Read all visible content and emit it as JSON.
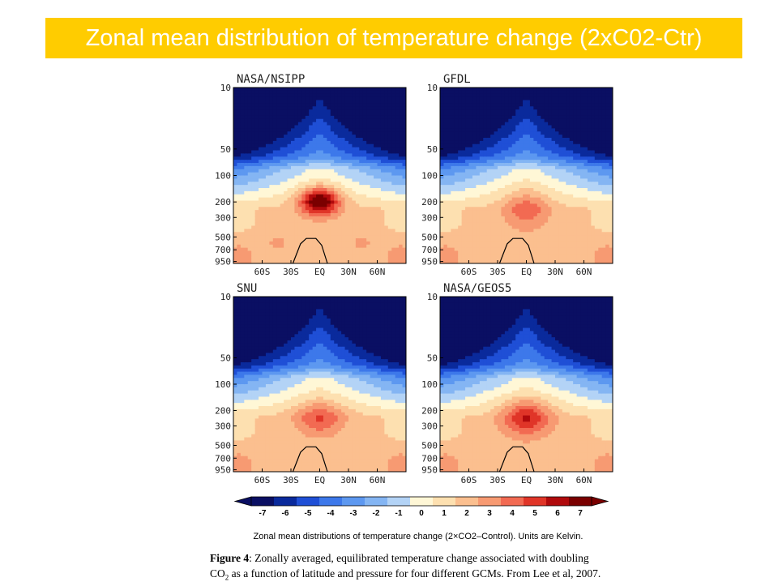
{
  "slide": {
    "title": "Zonal mean distribution of temperature change (2xC02-Ctr)"
  },
  "chart_data": {
    "type": "heatmap",
    "description_units": "K",
    "pressure_ticks": [
      "10",
      "50",
      "100",
      "200",
      "300",
      "500",
      "700",
      "950"
    ],
    "pressure_values": [
      10,
      50,
      100,
      200,
      300,
      500,
      700,
      950
    ],
    "latitude_ticks": [
      "60S",
      "30S",
      "EQ",
      "30N",
      "60N"
    ],
    "latitude_values": [
      -60,
      -30,
      0,
      30,
      60
    ],
    "colorbar": {
      "labels": [
        "-7",
        "-6",
        "-5",
        "-4",
        "-3",
        "-2",
        "-1",
        "0",
        "1",
        "2",
        "3",
        "4",
        "5",
        "6",
        "7"
      ],
      "values": [
        -7,
        -6,
        -5,
        -4,
        -3,
        -2,
        -1,
        0,
        1,
        2,
        3,
        4,
        5,
        6,
        7
      ],
      "colors": [
        "#0a0f63",
        "#0a2a9c",
        "#1f4fd6",
        "#3d78ea",
        "#5d98f0",
        "#84b5f3",
        "#b3d3f6",
        "#fff7d6",
        "#fde0b0",
        "#fbbf8f",
        "#f79a72",
        "#f26a52",
        "#e03528",
        "#b00a0c",
        "#7a0000"
      ]
    },
    "panels": [
      {
        "name": "NASA/NSIPP",
        "peak_upper_tropical_warming": 7,
        "polar_stratosphere_cooling": -7
      },
      {
        "name": "GFDL",
        "peak_upper_tropical_warming": 4,
        "polar_stratosphere_cooling": -7
      },
      {
        "name": "SNU",
        "peak_upper_tropical_warming": 4,
        "polar_stratosphere_cooling": -7
      },
      {
        "name": "NASA/GEOS5",
        "peak_upper_tropical_warming": 5,
        "polar_stratosphere_cooling": -7
      }
    ]
  },
  "caption": {
    "colorbar_caption": "Zonal mean distributions of temperature change (2×CO2–Control). Units are Kelvin.",
    "figure_label": "Figure 4",
    "figure_text_1": ": Zonally averaged, equilibrated temperature change associated with doubling",
    "figure_co2_prefix": "CO",
    "figure_co2_sub": "2",
    "figure_text_2": " as a function of latitude and pressure for four different GCMs.  From Lee et al, 2007."
  }
}
